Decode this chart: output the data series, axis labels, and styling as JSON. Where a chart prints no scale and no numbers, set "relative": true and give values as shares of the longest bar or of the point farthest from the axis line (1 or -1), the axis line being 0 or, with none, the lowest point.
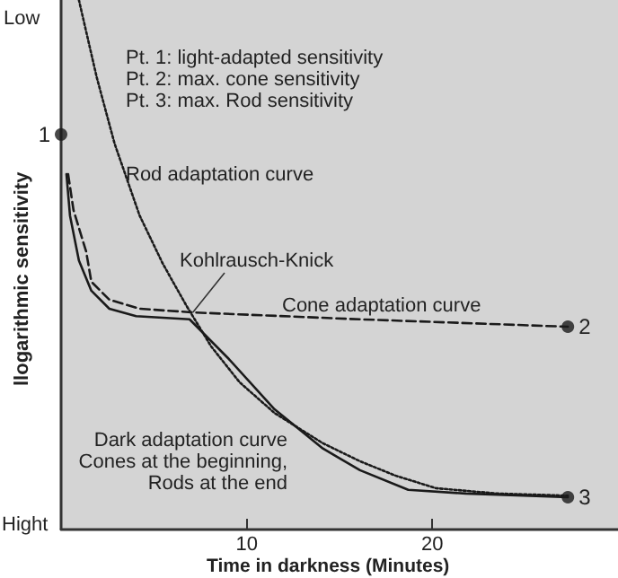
{
  "chart_data": {
    "type": "line",
    "relative": true,
    "xlabel": "Time in darkness (Minutes)",
    "ylabel": "llogarithmic sensitivity",
    "xlim": [
      0,
      30
    ],
    "xticks": [
      10,
      20
    ],
    "grid": false,
    "legend": false,
    "marker": "none",
    "annotations": [
      "Low",
      "Hight",
      "Pt. 1: light-adapted sensitivity",
      "Pt. 2: max. cone sensitivity",
      "Pt. 3: max. Rod sensitivity",
      {
        "text": "Kohlrausch-Knick",
        "x": 7.1,
        "y": 0.41
      },
      "Cones at the beginning,",
      "Rods at the end",
      {
        "text": "1",
        "x": 0,
        "y": 0.746
      },
      {
        "text": "2",
        "x": 27.3,
        "y": 0.383
      },
      {
        "text": "3",
        "x": 27.3,
        "y": 0.061
      }
    ],
    "series": [
      {
        "name": "Rod adaptation curve",
        "color": "#1a1a1a",
        "line_style": "dotted",
        "x": [
          0.96,
          1.92,
          2.88,
          4.23,
          5.48,
          6.73,
          8.08,
          9.62,
          11.5,
          14.1,
          16.1,
          18.0,
          20.2,
          23.5,
          27.3
        ],
        "values": [
          1.0,
          0.854,
          0.729,
          0.593,
          0.502,
          0.424,
          0.346,
          0.278,
          0.22,
          0.163,
          0.129,
          0.102,
          0.078,
          0.068,
          0.064
        ]
      },
      {
        "name": "Cone adaptation curve",
        "color": "#1a1a1a",
        "line_style": "dashed",
        "x": [
          0.38,
          0.67,
          1.35,
          1.63,
          2.6,
          4.23,
          7.1,
          16.1,
          27.3
        ],
        "values": [
          0.671,
          0.603,
          0.525,
          0.468,
          0.434,
          0.417,
          0.41,
          0.397,
          0.383
        ]
      },
      {
        "name": "Dark adaptation curve",
        "color": "#1a1a1a",
        "line_style": "solid",
        "x": [
          0.29,
          0.48,
          0.96,
          1.63,
          2.6,
          4.04,
          6.92,
          9.04,
          11.5,
          14.1,
          16.1,
          18.7,
          21.8,
          27.3
        ],
        "values": [
          0.671,
          0.593,
          0.508,
          0.451,
          0.417,
          0.403,
          0.397,
          0.322,
          0.227,
          0.153,
          0.112,
          0.075,
          0.068,
          0.061
        ]
      },
      {
        "type": "scatter",
        "color": "#1a1a1a",
        "marker": "circle",
        "x": [
          0,
          27.3,
          27.3
        ],
        "values": [
          0.746,
          0.383,
          0.061
        ]
      }
    ]
  }
}
